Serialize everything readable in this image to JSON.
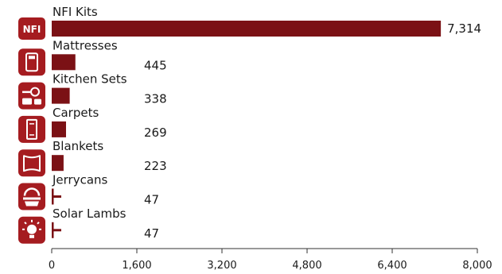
{
  "chart_data": {
    "type": "bar",
    "orientation": "horizontal",
    "title": "",
    "xlabel": "",
    "ylabel": "",
    "categories": [
      "NFI Kits",
      "Mattresses",
      "Kitchen Sets",
      "Carpets",
      "Blankets",
      "Jerrycans",
      "Solar Lambs"
    ],
    "values": [
      7314,
      445,
      338,
      269,
      223,
      47,
      47
    ],
    "value_labels": [
      "7,314",
      "445",
      "338",
      "269",
      "223",
      "47",
      "47"
    ],
    "icons": [
      "nfi-badge-icon",
      "mattress-icon",
      "kitchen-set-icon",
      "carpet-icon",
      "blanket-icon",
      "jerrycan-icon",
      "solar-lamp-icon"
    ],
    "icon_text": "NFI",
    "xlim": [
      0,
      8000
    ],
    "xticks": [
      0,
      1600,
      3200,
      4800,
      6400,
      8000
    ],
    "xtick_labels": [
      "0",
      "1,600",
      "3,200",
      "4,800",
      "6,400",
      "8,000"
    ],
    "grid": false,
    "legend": "none",
    "bar_color": "#7b1115",
    "icon_color": "#a51c20"
  }
}
